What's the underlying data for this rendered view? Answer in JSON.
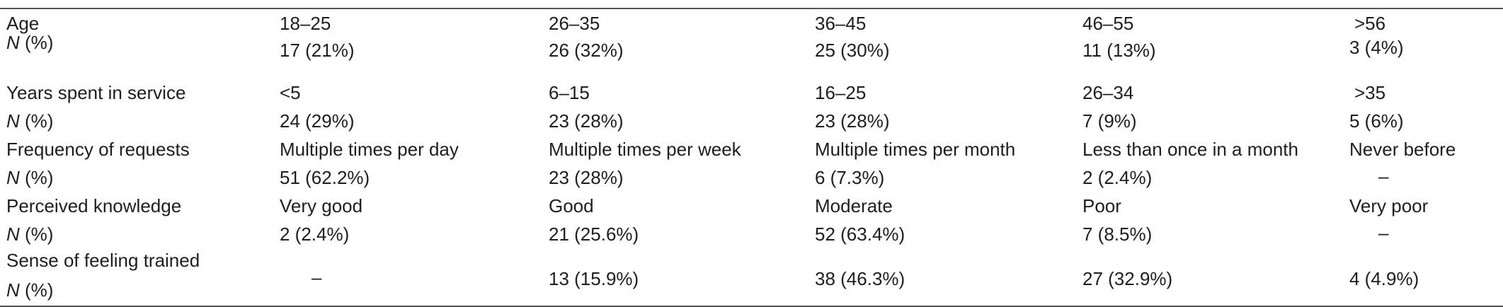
{
  "table": {
    "rows": [
      {
        "label": "Age",
        "sub_n": "N",
        "sub_pct": " (%)",
        "categories": [
          "18–25",
          "26–35",
          "36–45",
          "46–55",
          ">56"
        ],
        "values": [
          "17 (21%)",
          "26 (32%)",
          "25 (30%)",
          "11 (13%)",
          "3 (4%)"
        ]
      },
      {
        "label": "Years spent in service",
        "sub_n": "N",
        "sub_pct": " (%)",
        "categories": [
          "<5",
          "6–15",
          "16–25",
          "26–34",
          ">35"
        ],
        "values": [
          "24 (29%)",
          "23 (28%)",
          "23 (28%)",
          "7 (9%)",
          "5 (6%)"
        ]
      },
      {
        "label": "Frequency of requests",
        "sub_n": "N",
        "sub_pct": " (%)",
        "categories": [
          "Multiple times per day",
          "Multiple times per week",
          "Multiple times per month",
          "Less than once in a month",
          "Never before"
        ],
        "values": [
          "51 (62.2%)",
          "23 (28%)",
          "6 (7.3%)",
          "2 (2.4%)",
          "–"
        ]
      },
      {
        "label": "Perceived knowledge",
        "sub_n": "N",
        "sub_pct": " (%)",
        "categories": [
          "Very good",
          "Good",
          "Moderate",
          "Poor",
          "Very poor"
        ],
        "values": [
          "2 (2.4%)",
          "21 (25.6%)",
          "52 (63.4%)",
          "7 (8.5%)",
          "–"
        ]
      },
      {
        "label": "Sense of feeling trained",
        "sub_n": "N",
        "sub_pct": " (%)",
        "categories": [],
        "values": [
          "–",
          "13 (15.9%)",
          "38 (46.3%)",
          "27 (32.9%)",
          "4 (4.9%)"
        ]
      }
    ]
  }
}
